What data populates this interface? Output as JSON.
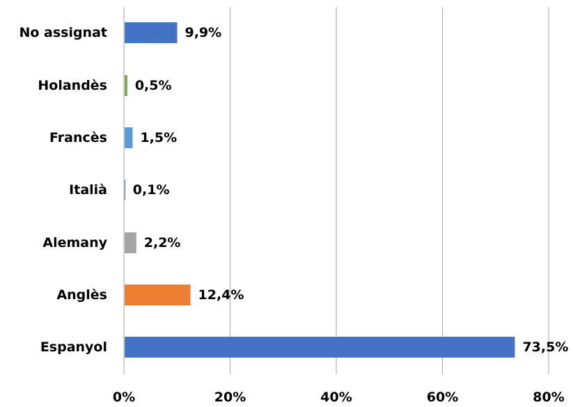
{
  "chart_data": {
    "type": "bar",
    "orientation": "horizontal",
    "categories": [
      "No assignat",
      "Holandès",
      "Francès",
      "Italià",
      "Alemany",
      "Anglès",
      "Espanyol"
    ],
    "values": [
      9.9,
      0.5,
      1.5,
      0.1,
      2.2,
      12.4,
      73.5
    ],
    "value_labels": [
      "9,9%",
      "0,5%",
      "1,5%",
      "0,1%",
      "2,2%",
      "12,4%",
      "73,5%"
    ],
    "colors": [
      "#4472c4",
      "#70ad47",
      "#5b9bd5",
      "#264478",
      "#a5a5a5",
      "#ed7d31",
      "#4472c4"
    ],
    "xlim": [
      0,
      80
    ],
    "x_ticks": [
      0,
      20,
      40,
      60,
      80
    ],
    "x_tick_labels": [
      "0%",
      "20%",
      "40%",
      "60%",
      "80%"
    ],
    "grid": true,
    "legend": "none",
    "title": "",
    "xlabel": "",
    "ylabel": ""
  }
}
